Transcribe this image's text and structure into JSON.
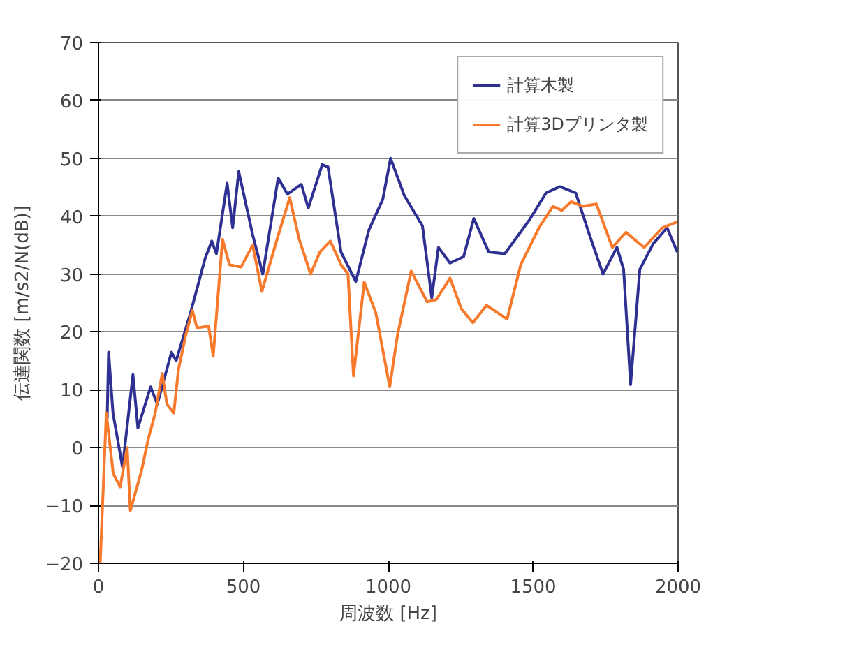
{
  "chart_data": {
    "type": "line",
    "xlabel": "周波数 [Hz]",
    "ylabel": "伝達関数 [m/s2/N(dB)]",
    "xlim": [
      0,
      2000
    ],
    "ylim": [
      -20,
      70
    ],
    "xticks": [
      0,
      500,
      1000,
      1500,
      2000
    ],
    "yticks": [
      -20,
      -10,
      0,
      10,
      20,
      30,
      40,
      50,
      60,
      70
    ],
    "grid": "y",
    "legend": "top right",
    "marker": "none",
    "line_style": "solid",
    "series": [
      {
        "name": "計算木製",
        "color": "#2e3192",
        "x": [
          30,
          35,
          50,
          83,
          119,
          136,
          180,
          203,
          252,
          268,
          316,
          368,
          391,
          407,
          444,
          463,
          484,
          532,
          567,
          620,
          652,
          700,
          724,
          772,
          792,
          837,
          888,
          933,
          981,
          1008,
          1055,
          1118,
          1150,
          1173,
          1213,
          1260,
          1295,
          1347,
          1402,
          1489,
          1544,
          1592,
          1647,
          1694,
          1741,
          1789,
          1812,
          1836,
          1868,
          1915,
          1962,
          1997
        ],
        "values": [
          5,
          16.5,
          6,
          -3.4,
          12.6,
          3.4,
          10.5,
          7.5,
          16.5,
          15,
          23,
          32.7,
          35.7,
          33.5,
          45.7,
          38,
          47.7,
          36.8,
          30,
          46.6,
          43.8,
          45.5,
          41.4,
          48.9,
          48.5,
          33.8,
          28.7,
          37.6,
          42.9,
          50,
          43.6,
          38.3,
          25.9,
          34.6,
          31.9,
          33,
          39.6,
          33.8,
          33.5,
          39.5,
          44,
          45.1,
          44,
          36.8,
          30,
          34.6,
          30.8,
          10.9,
          30.8,
          35.3,
          38,
          33.8
        ]
      },
      {
        "name": "計算3Dプリンタ製",
        "color": "#f7792b",
        "x": [
          6,
          27,
          51,
          75,
          99,
          110,
          148,
          172,
          196,
          220,
          236,
          260,
          276,
          300,
          324,
          340,
          380,
          396,
          428,
          452,
          492,
          532,
          564,
          612,
          660,
          692,
          732,
          764,
          800,
          837,
          861,
          880,
          917,
          957,
          1005,
          1032,
          1079,
          1134,
          1166,
          1213,
          1252,
          1292,
          1339,
          1410,
          1457,
          1520,
          1568,
          1599,
          1631,
          1671,
          1718,
          1773,
          1820,
          1883,
          1946,
          1997
        ],
        "values": [
          -20,
          6,
          -4.5,
          -6.8,
          0,
          -10.9,
          -4.1,
          1.5,
          6,
          12.8,
          7.5,
          6,
          13.5,
          19.2,
          23.7,
          20.7,
          21,
          15.8,
          36,
          31.6,
          31.2,
          35,
          27,
          35.3,
          43.2,
          36.1,
          30,
          33.8,
          35.7,
          31.6,
          30,
          12.4,
          28.6,
          23.3,
          10.5,
          19.5,
          30.5,
          25.2,
          25.6,
          29.3,
          24,
          21.6,
          24.6,
          22.2,
          31.6,
          38,
          41.7,
          41,
          42.5,
          41.7,
          42.1,
          34.6,
          37.2,
          34.6,
          38,
          39
        ]
      }
    ]
  }
}
